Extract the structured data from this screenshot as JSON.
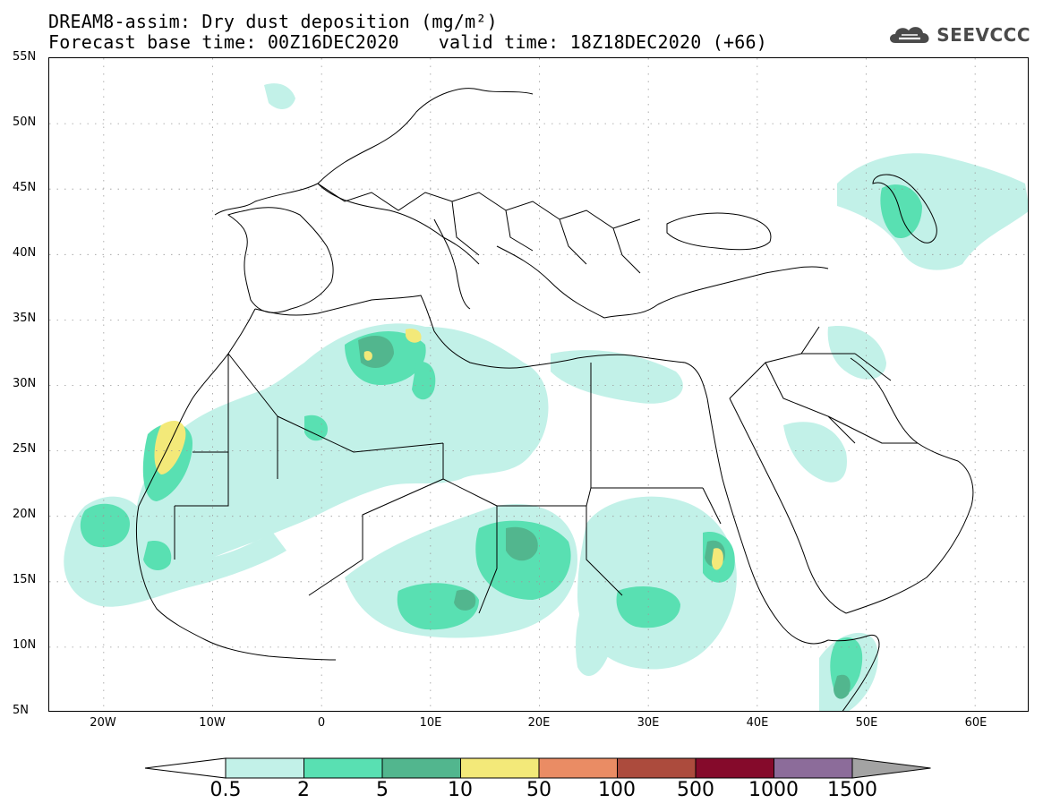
{
  "header": {
    "title": "DREAM8-assim: Dry dust deposition (mg/m²)",
    "base_time": "Forecast base time: 00Z16DEC2020",
    "valid_time": "valid time: 18Z18DEC2020 (+66)"
  },
  "logo": {
    "text": "SEEVCCC",
    "icon": "cloud-icon"
  },
  "map": {
    "lon_range": [
      -25,
      65
    ],
    "lat_range": [
      5,
      55
    ],
    "lat_labels": [
      "55N",
      "50N",
      "45N",
      "40N",
      "35N",
      "30N",
      "25N",
      "20N",
      "15N",
      "10N",
      "5N"
    ],
    "lon_labels": [
      "20W",
      "10W",
      "0",
      "10E",
      "20E",
      "30E",
      "40E",
      "50E",
      "60E"
    ],
    "gridlines": "dotted"
  },
  "legend": {
    "labels": [
      "0.5",
      "2",
      "5",
      "10",
      "50",
      "100",
      "500",
      "1000",
      "1500"
    ],
    "colors": [
      "#ffffff",
      "#c2f1e8",
      "#59e0b2",
      "#52b68e",
      "#f3e979",
      "#ea8c64",
      "#ac4b3d",
      "#850a2b",
      "#8c6c9a",
      "#a3a3a3"
    ]
  }
}
